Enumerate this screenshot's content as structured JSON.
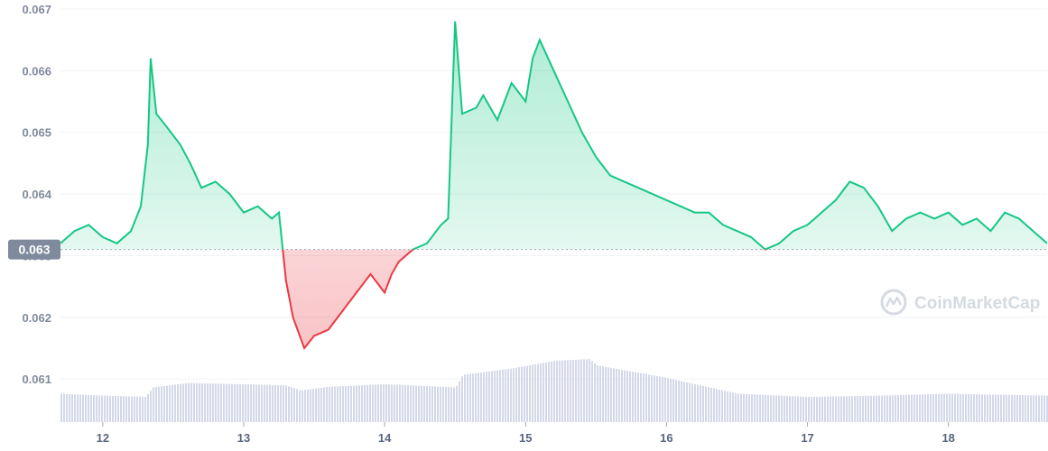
{
  "watermark": "CoinMarketCap",
  "reference_label": "0.063",
  "colors": {
    "up": "#16c784",
    "down": "#ea3943",
    "volume": "#d4d8e8",
    "grid": "#eff2f5",
    "reference": "#a1a7bb",
    "badge": "#808a9d"
  },
  "chart_data": {
    "type": "area",
    "x_ticks": [
      "12",
      "13",
      "14",
      "15",
      "16",
      "17",
      "18"
    ],
    "x_range": [
      11.7,
      18.7
    ],
    "y_ticks": [
      "0.061",
      "0.062",
      "0.063",
      "0.064",
      "0.065",
      "0.066",
      "0.067"
    ],
    "ylim": [
      0.0603,
      0.067
    ],
    "reference_value": 0.0631,
    "series": [
      {
        "values": [
          [
            11.7,
            0.0632
          ],
          [
            11.8,
            0.0634
          ],
          [
            11.9,
            0.0635
          ],
          [
            12.0,
            0.0633
          ],
          [
            12.1,
            0.0632
          ],
          [
            12.2,
            0.0634
          ],
          [
            12.27,
            0.0638
          ],
          [
            12.32,
            0.0648
          ],
          [
            12.34,
            0.0662
          ],
          [
            12.38,
            0.0653
          ],
          [
            12.45,
            0.0651
          ],
          [
            12.55,
            0.0648
          ],
          [
            12.62,
            0.0645
          ],
          [
            12.7,
            0.0641
          ],
          [
            12.8,
            0.0642
          ],
          [
            12.9,
            0.064
          ],
          [
            13.0,
            0.0637
          ],
          [
            13.1,
            0.0638
          ],
          [
            13.2,
            0.0636
          ],
          [
            13.25,
            0.0637
          ],
          [
            13.3,
            0.0626
          ],
          [
            13.35,
            0.062
          ],
          [
            13.43,
            0.0615
          ],
          [
            13.5,
            0.0617
          ],
          [
            13.6,
            0.0618
          ],
          [
            13.7,
            0.0621
          ],
          [
            13.8,
            0.0624
          ],
          [
            13.9,
            0.0627
          ],
          [
            14.0,
            0.0624
          ],
          [
            14.05,
            0.0627
          ],
          [
            14.1,
            0.0629
          ],
          [
            14.2,
            0.0631
          ],
          [
            14.3,
            0.0632
          ],
          [
            14.4,
            0.0635
          ],
          [
            14.45,
            0.0636
          ],
          [
            14.5,
            0.0668
          ],
          [
            14.55,
            0.0653
          ],
          [
            14.65,
            0.0654
          ],
          [
            14.7,
            0.0656
          ],
          [
            14.8,
            0.0652
          ],
          [
            14.9,
            0.0658
          ],
          [
            15.0,
            0.0655
          ],
          [
            15.05,
            0.0662
          ],
          [
            15.1,
            0.0665
          ],
          [
            15.2,
            0.066
          ],
          [
            15.3,
            0.0655
          ],
          [
            15.4,
            0.065
          ],
          [
            15.45,
            0.0648
          ],
          [
            15.5,
            0.0646
          ],
          [
            15.6,
            0.0643
          ],
          [
            15.7,
            0.0642
          ],
          [
            15.8,
            0.0641
          ],
          [
            15.9,
            0.064
          ],
          [
            16.0,
            0.0639
          ],
          [
            16.1,
            0.0638
          ],
          [
            16.2,
            0.0637
          ],
          [
            16.3,
            0.0637
          ],
          [
            16.4,
            0.0635
          ],
          [
            16.5,
            0.0634
          ],
          [
            16.6,
            0.0633
          ],
          [
            16.7,
            0.0631
          ],
          [
            16.8,
            0.0632
          ],
          [
            16.9,
            0.0634
          ],
          [
            17.0,
            0.0635
          ],
          [
            17.1,
            0.0637
          ],
          [
            17.2,
            0.0639
          ],
          [
            17.3,
            0.0642
          ],
          [
            17.4,
            0.0641
          ],
          [
            17.5,
            0.0638
          ],
          [
            17.6,
            0.0634
          ],
          [
            17.7,
            0.0636
          ],
          [
            17.8,
            0.0637
          ],
          [
            17.9,
            0.0636
          ],
          [
            18.0,
            0.0637
          ],
          [
            18.1,
            0.0635
          ],
          [
            18.2,
            0.0636
          ],
          [
            18.3,
            0.0634
          ],
          [
            18.4,
            0.0637
          ],
          [
            18.5,
            0.0636
          ],
          [
            18.6,
            0.0634
          ],
          [
            18.7,
            0.0632
          ]
        ]
      }
    ],
    "volume_profile": [
      [
        11.7,
        0.45
      ],
      [
        12.0,
        0.42
      ],
      [
        12.3,
        0.4
      ],
      [
        12.35,
        0.55
      ],
      [
        12.6,
        0.62
      ],
      [
        13.0,
        0.6
      ],
      [
        13.3,
        0.58
      ],
      [
        13.4,
        0.5
      ],
      [
        13.6,
        0.56
      ],
      [
        14.0,
        0.6
      ],
      [
        14.5,
        0.55
      ],
      [
        14.55,
        0.75
      ],
      [
        14.9,
        0.85
      ],
      [
        15.2,
        0.97
      ],
      [
        15.45,
        1.0
      ],
      [
        15.5,
        0.9
      ],
      [
        16.0,
        0.7
      ],
      [
        16.5,
        0.45
      ],
      [
        17.0,
        0.4
      ],
      [
        17.5,
        0.42
      ],
      [
        18.0,
        0.45
      ],
      [
        18.7,
        0.42
      ]
    ]
  }
}
